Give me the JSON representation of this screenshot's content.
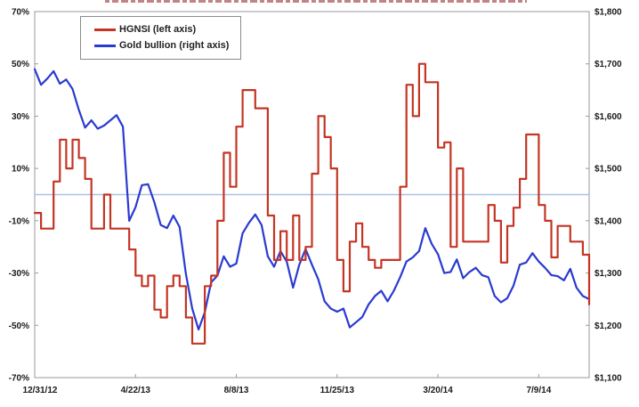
{
  "chart_data": {
    "type": "line",
    "title_clipped": true,
    "clipped_title_color": "#a04040",
    "axis_color": "#9a9a9a",
    "label_color": "#1a1a1a",
    "background": "#ffffff",
    "grid": "off",
    "zero_line": {
      "axis": "left",
      "value": 0,
      "color": "#a9c4e2"
    },
    "x_tick_labels": [
      "12/31/12",
      "4/22/13",
      "8/8/13",
      "11/25/13",
      "3/20/14",
      "7/9/14"
    ],
    "x_tick_weeks": [
      0,
      16,
      32,
      48,
      64,
      80
    ],
    "x_total_weeks": 88,
    "left_axis": {
      "max": 70,
      "min": -70,
      "tick_values": [
        70,
        50,
        30,
        10,
        -10,
        -30,
        -50,
        -70
      ],
      "tick_labels": [
        "70%",
        "50%",
        "30%",
        "10%",
        "-10%",
        "-30%",
        "-50%",
        "-70%"
      ]
    },
    "right_axis": {
      "max": 1800,
      "min": 1100,
      "tick_values": [
        1800,
        1700,
        1600,
        1500,
        1400,
        1300,
        1200,
        1100
      ],
      "tick_labels": [
        "$1,800",
        "$1,700",
        "$1,600",
        "$1,500",
        "$1,400",
        "$1,300",
        "$1,200",
        "$1,100"
      ]
    },
    "legend": {
      "position": "top-left"
    },
    "series": [
      {
        "name": "HGNSI (left axis)",
        "axis": "left",
        "color": "#c43524",
        "style": "step",
        "values": [
          -7,
          -13,
          -13,
          5,
          21,
          10,
          21,
          14,
          6,
          -13,
          -13,
          0,
          -13,
          -13,
          -13,
          -21,
          -31,
          -35,
          -31,
          -44,
          -47,
          -35,
          -31,
          -35,
          -47,
          -57,
          -57,
          -35,
          -31,
          -10,
          16,
          3,
          26,
          40,
          40,
          33,
          33,
          -8,
          -25,
          -14,
          -25,
          -8,
          -25,
          -20,
          8,
          30,
          22,
          10,
          -25,
          -37,
          -18,
          -11,
          -20,
          -25,
          -28,
          -25,
          -25,
          -25,
          3,
          42,
          30,
          50,
          43,
          43,
          18,
          20,
          -20,
          10,
          -18,
          -18,
          -18,
          -18,
          -4,
          -10,
          -26,
          -12,
          -5,
          6,
          23,
          23,
          -4,
          -10,
          -24,
          -12,
          -12,
          -18,
          -18,
          -23,
          -42
        ]
      },
      {
        "name": "Gold bullion (right axis)",
        "axis": "right",
        "color": "#2a3bd0",
        "style": "linear",
        "values": [
          1690,
          1660,
          1672,
          1686,
          1662,
          1670,
          1652,
          1612,
          1578,
          1592,
          1576,
          1582,
          1592,
          1602,
          1580,
          1400,
          1426,
          1468,
          1470,
          1435,
          1392,
          1386,
          1410,
          1388,
          1298,
          1232,
          1192,
          1225,
          1282,
          1295,
          1332,
          1312,
          1318,
          1376,
          1396,
          1412,
          1392,
          1332,
          1312,
          1342,
          1322,
          1272,
          1316,
          1346,
          1316,
          1288,
          1246,
          1232,
          1226,
          1232,
          1196,
          1206,
          1216,
          1240,
          1256,
          1266,
          1246,
          1266,
          1292,
          1322,
          1330,
          1342,
          1386,
          1356,
          1336,
          1300,
          1302,
          1326,
          1290,
          1302,
          1310,
          1296,
          1292,
          1256,
          1244,
          1252,
          1276,
          1316,
          1320,
          1338,
          1322,
          1310,
          1296,
          1294,
          1286,
          1308,
          1272,
          1256,
          1250
        ]
      }
    ]
  }
}
